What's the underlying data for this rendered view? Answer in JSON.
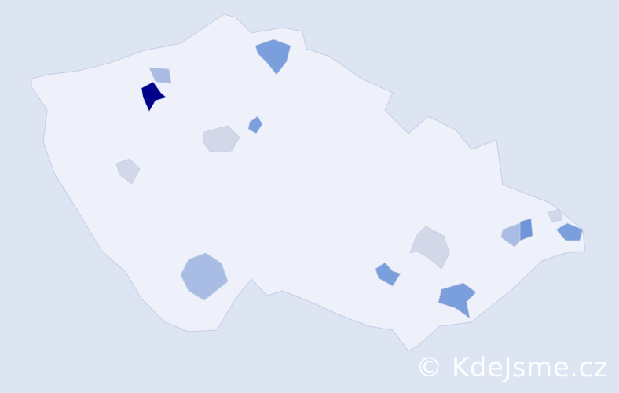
{
  "map": {
    "country_fill": "#eef1fa",
    "border_color": "#c5cde6",
    "background": "#dde5f2",
    "highlighted_regions": [
      {
        "name": "region-darkest",
        "color": "#00008b"
      },
      {
        "name": "region-medium",
        "color": "#7b9fdc"
      },
      {
        "name": "region-medium-2",
        "color": "#6f94d8"
      },
      {
        "name": "region-light",
        "color": "#a9bde4"
      },
      {
        "name": "region-grey",
        "color": "#d3d8e9"
      }
    ]
  },
  "watermark": {
    "text": "© KdeJsme.cz"
  }
}
